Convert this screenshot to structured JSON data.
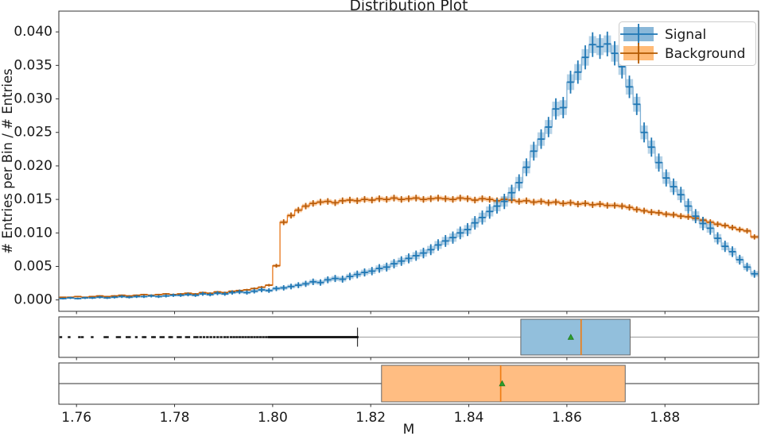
{
  "title": "Distribution Plot",
  "xlabel": "M",
  "ylabel": "# Entries per Bin / # Entries",
  "legend": {
    "position": "upper-right",
    "entries": [
      {
        "label": "Signal",
        "fill": "#8ab8d9",
        "line": "#1f77b4"
      },
      {
        "label": "Background",
        "fill": "#ffbb78",
        "line": "#b35900"
      }
    ]
  },
  "colors": {
    "spine": "#333333",
    "signal_marker": "#1f77b4",
    "signal_step": "#7fb0d5",
    "signal_band": "rgba(31,119,180,0.32)",
    "signal_box_fill": "#92bfdc",
    "background_marker": "#b85c0a",
    "background_step": "#e8761a",
    "background_band": "rgba(255,127,14,0.38)",
    "background_box_fill": "#ffbd82",
    "median_line": "#ef7d14",
    "mean_marker": "#2ca02c",
    "whisker_signal": "#a9a9a9",
    "whisker_background": "#5a5a5a",
    "flier": "#111111"
  },
  "chart_data": {
    "type": "bar",
    "note": "normalized step histograms with errorbars (top) plus two horizontal boxplots sharing the x axis",
    "xlim": [
      1.7564,
      1.8991
    ],
    "xticks": [
      1.76,
      1.78,
      1.8,
      1.82,
      1.84,
      1.86,
      1.88
    ],
    "xticklabels": [
      "1.76",
      "1.78",
      "1.80",
      "1.82",
      "1.84",
      "1.86",
      "1.88"
    ],
    "main": {
      "ylim": [
        -0.0017,
        0.0431
      ],
      "yticks": [
        0.0,
        0.005,
        0.01,
        0.015,
        0.02,
        0.025,
        0.03,
        0.035,
        0.04
      ],
      "yticklabels": [
        "0.000",
        "0.005",
        "0.010",
        "0.015",
        "0.020",
        "0.025",
        "0.030",
        "0.035",
        "0.040"
      ],
      "bin_start": 1.7565,
      "bin_width": 0.0015,
      "series": [
        {
          "name": "Background",
          "yerr_coeff": 0.0028,
          "values": [
            0.0004,
            0.0004,
            0.0005,
            0.0004,
            0.0005,
            0.0006,
            0.0005,
            0.0006,
            0.0007,
            0.0006,
            0.0007,
            0.0008,
            0.0007,
            0.0008,
            0.0009,
            0.0008,
            0.0009,
            0.001,
            0.0009,
            0.0011,
            0.001,
            0.0012,
            0.0011,
            0.0013,
            0.0014,
            0.0015,
            0.0017,
            0.0019,
            0.0022,
            0.0051,
            0.0116,
            0.0126,
            0.0134,
            0.014,
            0.0144,
            0.0146,
            0.0147,
            0.0145,
            0.0148,
            0.0149,
            0.0148,
            0.015,
            0.0149,
            0.0151,
            0.015,
            0.0152,
            0.015,
            0.0151,
            0.0152,
            0.015,
            0.0151,
            0.0152,
            0.0151,
            0.015,
            0.0152,
            0.0151,
            0.0149,
            0.0151,
            0.015,
            0.0148,
            0.015,
            0.0149,
            0.0147,
            0.0148,
            0.0146,
            0.0147,
            0.0145,
            0.0146,
            0.0144,
            0.0145,
            0.0143,
            0.0144,
            0.0142,
            0.0143,
            0.0141,
            0.0141,
            0.014,
            0.0138,
            0.0135,
            0.0133,
            0.0131,
            0.013,
            0.0128,
            0.0127,
            0.0125,
            0.0124,
            0.0122,
            0.0119,
            0.0116,
            0.0113,
            0.0111,
            0.0108,
            0.0105,
            0.0103,
            0.0094
          ]
        },
        {
          "name": "Signal",
          "yerr_coeff": 0.0065,
          "values": [
            0.0002,
            0.0003,
            0.0002,
            0.0003,
            0.0003,
            0.0004,
            0.0003,
            0.0004,
            0.0005,
            0.0004,
            0.0005,
            0.0005,
            0.0006,
            0.0005,
            0.0006,
            0.0007,
            0.0007,
            0.0008,
            0.0007,
            0.0009,
            0.0008,
            0.001,
            0.0009,
            0.0011,
            0.0012,
            0.0011,
            0.0013,
            0.0015,
            0.0014,
            0.0017,
            0.0018,
            0.002,
            0.0022,
            0.0024,
            0.0027,
            0.0026,
            0.003,
            0.0032,
            0.0031,
            0.0035,
            0.0038,
            0.0041,
            0.0043,
            0.0047,
            0.0049,
            0.0054,
            0.0058,
            0.0062,
            0.0066,
            0.007,
            0.0075,
            0.0082,
            0.0088,
            0.0093,
            0.01,
            0.0105,
            0.0115,
            0.0123,
            0.0132,
            0.014,
            0.0147,
            0.016,
            0.0175,
            0.0198,
            0.0222,
            0.024,
            0.0258,
            0.0285,
            0.0287,
            0.0325,
            0.034,
            0.0362,
            0.0381,
            0.0378,
            0.0382,
            0.0368,
            0.0348,
            0.0318,
            0.0292,
            0.025,
            0.0228,
            0.0205,
            0.0182,
            0.0169,
            0.0157,
            0.014,
            0.0125,
            0.0114,
            0.0107,
            0.0092,
            0.008,
            0.0072,
            0.006,
            0.0049,
            0.0039
          ]
        }
      ]
    },
    "boxplots": [
      {
        "name": "Signal",
        "q1": 1.8506,
        "median": 1.8629,
        "q3": 1.8729,
        "mean": 1.8608,
        "whisker_low": 1.8173,
        "whisker_high": 1.8991,
        "cap_low": true,
        "cap_high": false,
        "flier_band": [
          1.799,
          1.8175
        ],
        "fliers": [
          1.7568,
          1.7585,
          1.7606,
          1.7612,
          1.7632,
          1.7658,
          1.7663,
          1.7683,
          1.7688,
          1.7703,
          1.7708,
          1.7722,
          1.7736,
          1.774,
          1.7755,
          1.7759,
          1.7772,
          1.7777,
          1.779,
          1.7794,
          1.7807,
          1.7812,
          1.7824,
          1.7829,
          1.7841,
          1.7846,
          1.7853,
          1.786,
          1.7867,
          1.7874,
          1.7881,
          1.7888,
          1.7895,
          1.7902,
          1.7908,
          1.7915,
          1.7921,
          1.7927,
          1.7933,
          1.7939,
          1.7945,
          1.7951,
          1.7957,
          1.7963,
          1.7969,
          1.7975,
          1.7981,
          1.7987
        ]
      },
      {
        "name": "Background",
        "q1": 1.8222,
        "median": 1.8465,
        "q3": 1.8719,
        "mean": 1.8468,
        "whisker_low": 1.7564,
        "whisker_high": 1.8991,
        "cap_low": false,
        "cap_high": false,
        "flier_band": null,
        "fliers": []
      }
    ]
  }
}
